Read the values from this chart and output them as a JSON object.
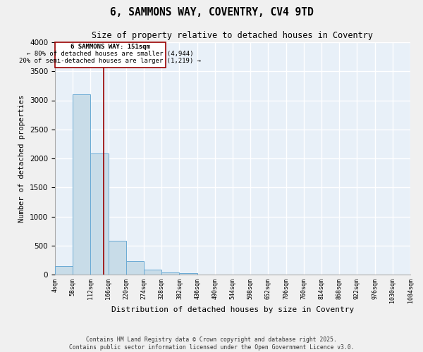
{
  "title": "6, SAMMONS WAY, COVENTRY, CV4 9TD",
  "subtitle": "Size of property relative to detached houses in Coventry",
  "xlabel": "Distribution of detached houses by size in Coventry",
  "ylabel": "Number of detached properties",
  "bar_color": "#C8DCE8",
  "bar_edge_color": "#6AAAD4",
  "background_color": "#E8F0F8",
  "grid_color": "#FFFFFF",
  "bins": [
    4,
    58,
    112,
    166,
    220,
    274,
    328,
    382,
    436,
    490,
    544,
    598,
    652,
    706,
    760,
    814,
    868,
    922,
    976,
    1030,
    1084
  ],
  "counts": [
    150,
    3100,
    2080,
    580,
    225,
    80,
    40,
    30,
    0,
    0,
    0,
    0,
    0,
    0,
    0,
    0,
    0,
    0,
    0,
    0
  ],
  "tick_labels": [
    "4sqm",
    "58sqm",
    "112sqm",
    "166sqm",
    "220sqm",
    "274sqm",
    "328sqm",
    "382sqm",
    "436sqm",
    "490sqm",
    "544sqm",
    "598sqm",
    "652sqm",
    "706sqm",
    "760sqm",
    "814sqm",
    "868sqm",
    "922sqm",
    "976sqm",
    "1030sqm",
    "1084sqm"
  ],
  "property_size": 151,
  "annotation_title": "6 SAMMONS WAY: 151sqm",
  "annotation_line1": "← 80% of detached houses are smaller (4,944)",
  "annotation_line2": "20% of semi-detached houses are larger (1,219) →",
  "vline_color": "#990000",
  "annotation_box_color": "#990000",
  "ylim": [
    0,
    4000
  ],
  "yticks": [
    0,
    500,
    1000,
    1500,
    2000,
    2500,
    3000,
    3500,
    4000
  ],
  "footer1": "Contains HM Land Registry data © Crown copyright and database right 2025.",
  "footer2": "Contains public sector information licensed under the Open Government Licence v3.0."
}
